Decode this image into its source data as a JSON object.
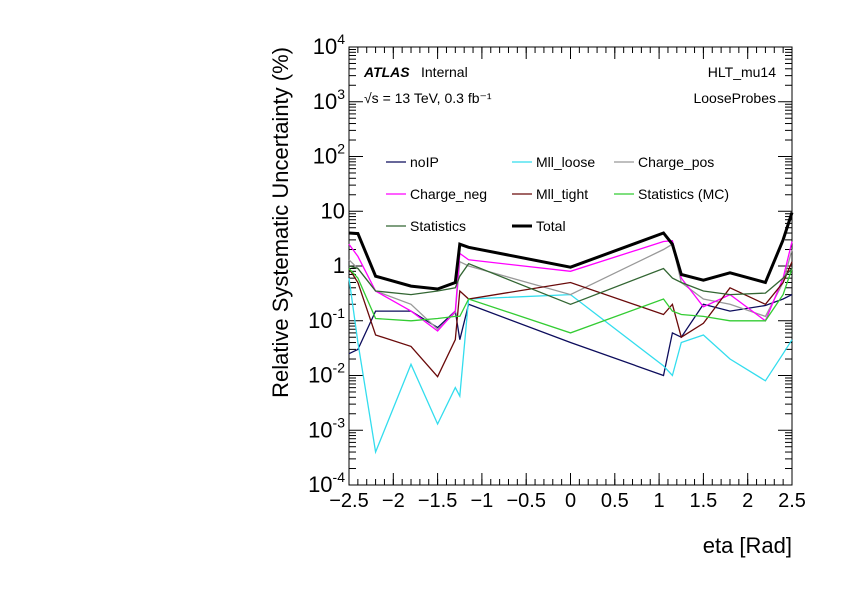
{
  "chart_data": {
    "type": "line",
    "title": "",
    "xlabel": "eta [Rad]",
    "ylabel": "Relative Systematic Uncertainty (%)",
    "xlim": [
      -2.5,
      2.5
    ],
    "ylim": [
      0.0001,
      10000
    ],
    "yscale": "log",
    "grid": false,
    "legend_position": "top",
    "x_tick_labels": [
      "−2.5",
      "−2",
      "−1.5",
      "−1",
      "−0.5",
      "0",
      "0.5",
      "1",
      "1.5",
      "2",
      "2.5"
    ],
    "y_tick_labels": [
      "10^-4",
      "10^-3",
      "10^-2",
      "10^-1",
      "1",
      "10",
      "10^2",
      "10^3",
      "10^4"
    ],
    "annotations": {
      "atlas": "ATLAS",
      "internal": "Internal",
      "energy_lumi": "√s = 13 TeV, 0.3 fb⁻¹",
      "trigger": "HLT_mu14",
      "probes": "LooseProbes"
    },
    "x": [
      -2.5,
      -2.4,
      -2.2,
      -1.8,
      -1.5,
      -1.3,
      -1.25,
      -1.15,
      0,
      1.05,
      1.15,
      1.25,
      1.5,
      1.8,
      2.2,
      2.4,
      2.5
    ],
    "series": [
      {
        "name": "noIP",
        "color": "#0c0c5c",
        "width": 1.3,
        "values": [
          0.025,
          0.03,
          0.15,
          0.15,
          0.075,
          0.15,
          0.045,
          0.2,
          0.04,
          0.01,
          0.06,
          0.05,
          0.2,
          0.15,
          0.19,
          0.25,
          0.3
        ]
      },
      {
        "name": "Mll_loose",
        "color": "#33ddee",
        "width": 1.3,
        "values": [
          0.6,
          0.04,
          0.0004,
          0.016,
          0.0013,
          0.006,
          0.0042,
          0.25,
          0.3,
          0.015,
          0.01,
          0.04,
          0.055,
          0.02,
          0.008,
          0.025,
          0.045
        ]
      },
      {
        "name": "Charge_pos",
        "color": "#999999",
        "width": 1.3,
        "values": [
          1.3,
          0.9,
          0.35,
          0.2,
          0.07,
          0.14,
          1.2,
          1.0,
          0.3,
          2.0,
          2.5,
          0.5,
          0.25,
          0.2,
          0.12,
          0.5,
          2.0
        ]
      },
      {
        "name": "Charge_neg",
        "color": "#ff00ff",
        "width": 1.3,
        "values": [
          2.5,
          1.5,
          0.35,
          0.15,
          0.065,
          0.15,
          1.7,
          1.3,
          0.8,
          2.8,
          2.9,
          0.6,
          0.18,
          0.3,
          0.1,
          0.6,
          2.8
        ]
      },
      {
        "name": "Mll_tight",
        "color": "#6a0a0a",
        "width": 1.3,
        "values": [
          0.9,
          0.5,
          0.055,
          0.034,
          0.0095,
          0.045,
          0.35,
          0.25,
          0.5,
          0.13,
          0.2,
          0.05,
          0.09,
          0.4,
          0.2,
          0.5,
          1.2
        ]
      },
      {
        "name": "Statistics (MC)",
        "color": "#33cc33",
        "width": 1.3,
        "values": [
          0.9,
          0.6,
          0.11,
          0.1,
          0.11,
          0.12,
          0.12,
          0.25,
          0.06,
          0.25,
          0.15,
          0.13,
          0.12,
          0.1,
          0.1,
          0.3,
          0.9
        ]
      },
      {
        "name": "Statistics",
        "color": "#336633",
        "width": 1.3,
        "values": [
          1.0,
          0.9,
          0.35,
          0.3,
          0.35,
          0.4,
          0.65,
          1.1,
          0.2,
          0.9,
          0.6,
          0.5,
          0.35,
          0.3,
          0.32,
          0.6,
          0.9
        ]
      },
      {
        "name": "Total",
        "color": "#000000",
        "width": 3,
        "values": [
          4.0,
          3.9,
          0.65,
          0.43,
          0.38,
          0.5,
          2.5,
          2.2,
          0.95,
          4.0,
          2.5,
          0.7,
          0.55,
          0.75,
          0.5,
          3.0,
          9.5
        ]
      }
    ]
  }
}
